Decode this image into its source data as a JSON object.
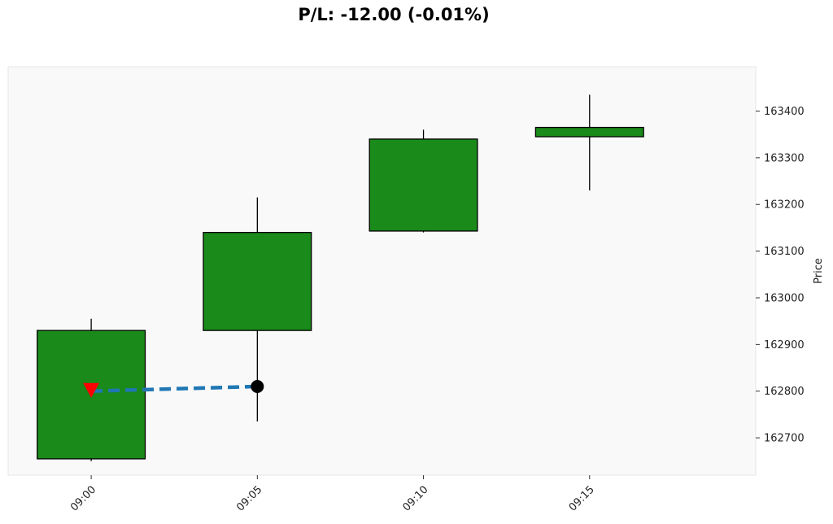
{
  "chart_data": {
    "type": "candlestick",
    "title": "P/L: -12.00 (-0.01%)",
    "xlabel": "",
    "ylabel": "Price",
    "y_axis_side": "right",
    "ylim": [
      162620,
      163495
    ],
    "yticks": [
      162700,
      162800,
      162900,
      163000,
      163100,
      163200,
      163300,
      163400
    ],
    "ytick_labels": [
      "162700",
      "162800",
      "162900",
      "163000",
      "163100",
      "163200",
      "163300",
      "163400"
    ],
    "xlim": [
      -0.5,
      4.0
    ],
    "grid": false,
    "categories": [
      "09:00",
      "09:05",
      "09:10",
      "09:15"
    ],
    "candles": [
      {
        "time": "09:00",
        "open": 162655,
        "high": 162955,
        "low": 162650,
        "close": 162930
      },
      {
        "time": "09:05",
        "open": 162930,
        "high": 163215,
        "low": 162735,
        "close": 163140
      },
      {
        "time": "09:10",
        "open": 163143,
        "high": 163360,
        "low": 163140,
        "close": 163340
      },
      {
        "time": "09:15",
        "open": 163345,
        "high": 163435,
        "low": 163230,
        "close": 163365
      }
    ],
    "trade": {
      "entry": {
        "x_index": 0,
        "price": 162800,
        "marker": "down-triangle",
        "color": "#ff0000"
      },
      "exit": {
        "x_index": 1,
        "price": 162810,
        "marker": "circle",
        "color": "#000000"
      },
      "line_style": "dashed",
      "line_color": "#1f77b4"
    },
    "colors": {
      "candle_fill": "#1a8a1a",
      "candle_edge": "#000000",
      "plot_background": "#f9f9f9"
    }
  }
}
